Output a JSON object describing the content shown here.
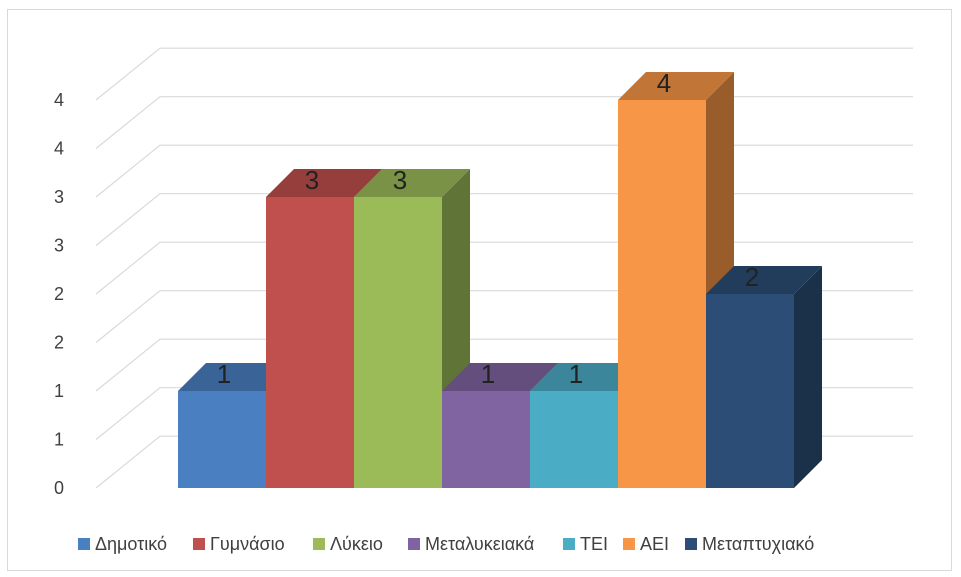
{
  "chart_data": {
    "type": "bar",
    "categories": [
      "Δημοτικό",
      "Γυμνάσιο",
      "Λύκειο",
      "Μεταλυκειακά",
      "ΤΕΙ",
      "ΑΕΙ",
      "Μεταπτυχιακό"
    ],
    "values": [
      1,
      3,
      3,
      1,
      1,
      4,
      2
    ],
    "data_labels": [
      "1",
      "3",
      "3",
      "1",
      "1",
      "4",
      "2"
    ],
    "y_tick_labels": [
      "0",
      "1",
      "1",
      "2",
      "2",
      "3",
      "3",
      "4",
      "4"
    ],
    "ylim": [
      0,
      4
    ],
    "grid": true,
    "style": "3d-column",
    "legend_position": "bottom",
    "colors": [
      "#4a7fc1",
      "#c0504d",
      "#9bbb59",
      "#8064a2",
      "#4bacc6",
      "#f79646",
      "#2c4d75"
    ],
    "legend": [
      {
        "label": "Δημοτικό",
        "color": "#4a7fc1"
      },
      {
        "label": "Γυμνάσιο",
        "color": "#c0504d"
      },
      {
        "label": "Λύκειο",
        "color": "#9bbb59"
      },
      {
        "label": "Μεταλυκειακά",
        "color": "#8064a2"
      },
      {
        "label": "ΤΕΙ",
        "color": "#4bacc6"
      },
      {
        "label": "ΑΕΙ",
        "color": "#f79646"
      },
      {
        "label": "Μεταπτυχιακό",
        "color": "#2c4d75"
      }
    ]
  }
}
